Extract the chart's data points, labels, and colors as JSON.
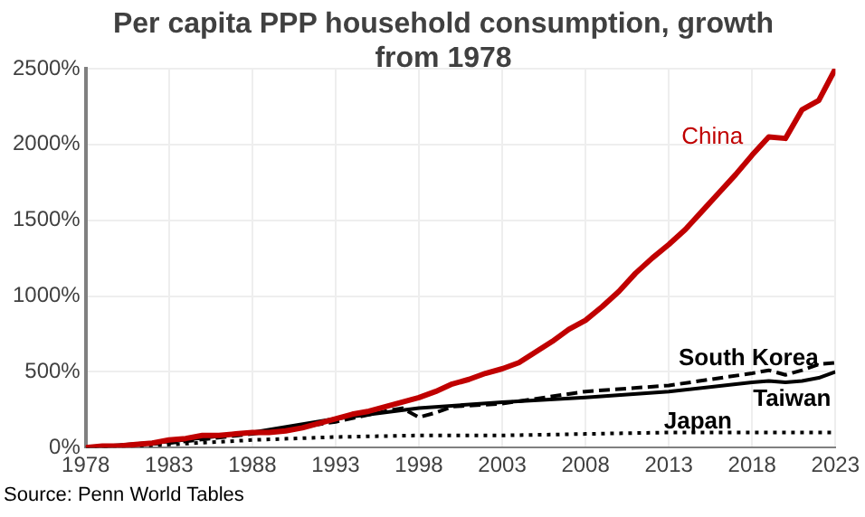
{
  "chart_data": {
    "type": "line",
    "title": "Per capita PPP household consumption, growth from 1978",
    "xlim": [
      1978,
      2023
    ],
    "xticks": [
      1978,
      1983,
      1988,
      1993,
      1998,
      2003,
      2008,
      2013,
      2018,
      2023
    ],
    "ylim": [
      0,
      2500
    ],
    "yticks": [
      {
        "value": 0,
        "label": "0%"
      },
      {
        "value": 500,
        "label": "500%"
      },
      {
        "value": 1000,
        "label": "1000%"
      },
      {
        "value": 1500,
        "label": "1500%"
      },
      {
        "value": 2000,
        "label": "2000%"
      },
      {
        "value": 2500,
        "label": "2500%"
      }
    ],
    "grid": true,
    "legend": false,
    "marker": "none",
    "annotations": [
      "Source: Penn World Tables"
    ],
    "series": [
      {
        "name": "China",
        "color": "#c00000",
        "line_style": "solid",
        "x": [
          1978,
          1979,
          1980,
          1981,
          1982,
          1983,
          1984,
          1985,
          1986,
          1987,
          1988,
          1989,
          1990,
          1991,
          1992,
          1993,
          1994,
          1995,
          1996,
          1997,
          1998,
          1999,
          2000,
          2001,
          2002,
          2003,
          2004,
          2005,
          2006,
          2007,
          2008,
          2009,
          2010,
          2011,
          2012,
          2013,
          2014,
          2015,
          2016,
          2017,
          2018,
          2019,
          2020,
          2021,
          2022,
          2023
        ],
        "values": [
          0,
          10,
          10,
          20,
          30,
          50,
          60,
          80,
          80,
          90,
          100,
          100,
          110,
          130,
          160,
          190,
          220,
          240,
          270,
          300,
          330,
          370,
          420,
          450,
          490,
          520,
          560,
          630,
          700,
          780,
          840,
          930,
          1030,
          1150,
          1250,
          1340,
          1440,
          1560,
          1680,
          1800,
          1930,
          2050,
          2040,
          2230,
          2290,
          2500
        ]
      },
      {
        "name": "South Korea",
        "color": "#000000",
        "line_style": "dashed",
        "x": [
          1978,
          1983,
          1988,
          1993,
          1996,
          1997,
          1998,
          1999,
          2000,
          2003,
          2008,
          2013,
          2018,
          2019,
          2020,
          2021,
          2022,
          2023
        ],
        "values": [
          0,
          30,
          90,
          170,
          240,
          260,
          200,
          230,
          270,
          290,
          370,
          410,
          490,
          510,
          480,
          510,
          550,
          560
        ]
      },
      {
        "name": "Taiwan",
        "color": "#000000",
        "line_style": "solid",
        "x": [
          1978,
          1983,
          1988,
          1993,
          1998,
          2003,
          2008,
          2013,
          2018,
          2019,
          2020,
          2021,
          2022,
          2023
        ],
        "values": [
          0,
          40,
          100,
          190,
          260,
          300,
          330,
          370,
          430,
          440,
          430,
          440,
          460,
          500
        ]
      },
      {
        "name": "Japan",
        "color": "#000000",
        "line_style": "dotted",
        "x": [
          1978,
          1983,
          1988,
          1993,
          1998,
          2003,
          2008,
          2013,
          2018,
          2023
        ],
        "values": [
          0,
          20,
          50,
          70,
          80,
          80,
          90,
          100,
          100,
          100
        ]
      }
    ]
  }
}
